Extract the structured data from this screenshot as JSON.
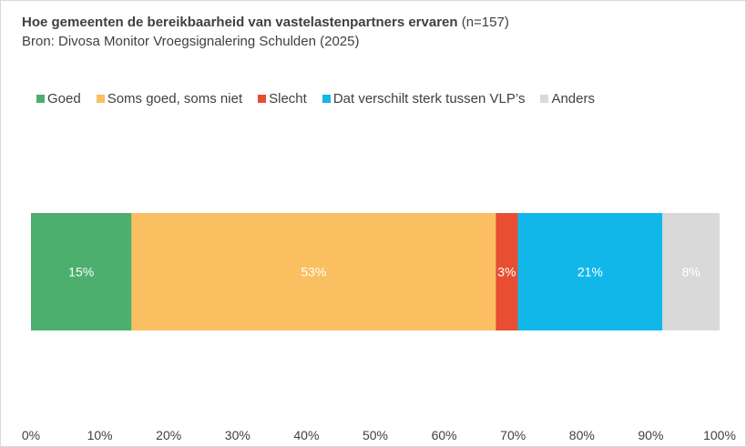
{
  "title": {
    "bold": "Hoe gemeenten de bereikbaarheid van vastelastenpartners ervaren",
    "suffix": " (n=157)"
  },
  "subtitle": "Bron: Divosa Monitor Vroegsignalering Schulden (2025)",
  "colors": {
    "goed": "#4caf6e",
    "soms": "#f9bf60",
    "slecht": "#e84e31",
    "verschilt": "#12b7ea",
    "anders": "#d9d9d9"
  },
  "chart_data": {
    "type": "bar",
    "orientation": "horizontal",
    "stacked": true,
    "xlim": [
      0,
      100
    ],
    "x_ticks": [
      "0%",
      "10%",
      "20%",
      "30%",
      "40%",
      "50%",
      "60%",
      "70%",
      "80%",
      "90%",
      "100%"
    ],
    "grid": false,
    "legend_position": "top",
    "series": [
      {
        "name": "Goed",
        "value": 14.6,
        "label": "15%",
        "color_key": "goed"
      },
      {
        "name": "Soms goed, soms niet",
        "value": 52.9,
        "label": "53%",
        "color_key": "soms"
      },
      {
        "name": "Slecht",
        "value": 3.2,
        "label": "3%",
        "color_key": "slecht"
      },
      {
        "name": "Dat verschilt sterk tussen VLP’s",
        "value": 21.0,
        "label": "21%",
        "color_key": "verschilt"
      },
      {
        "name": "Anders",
        "value": 8.3,
        "label": "8%",
        "color_key": "anders"
      }
    ]
  }
}
